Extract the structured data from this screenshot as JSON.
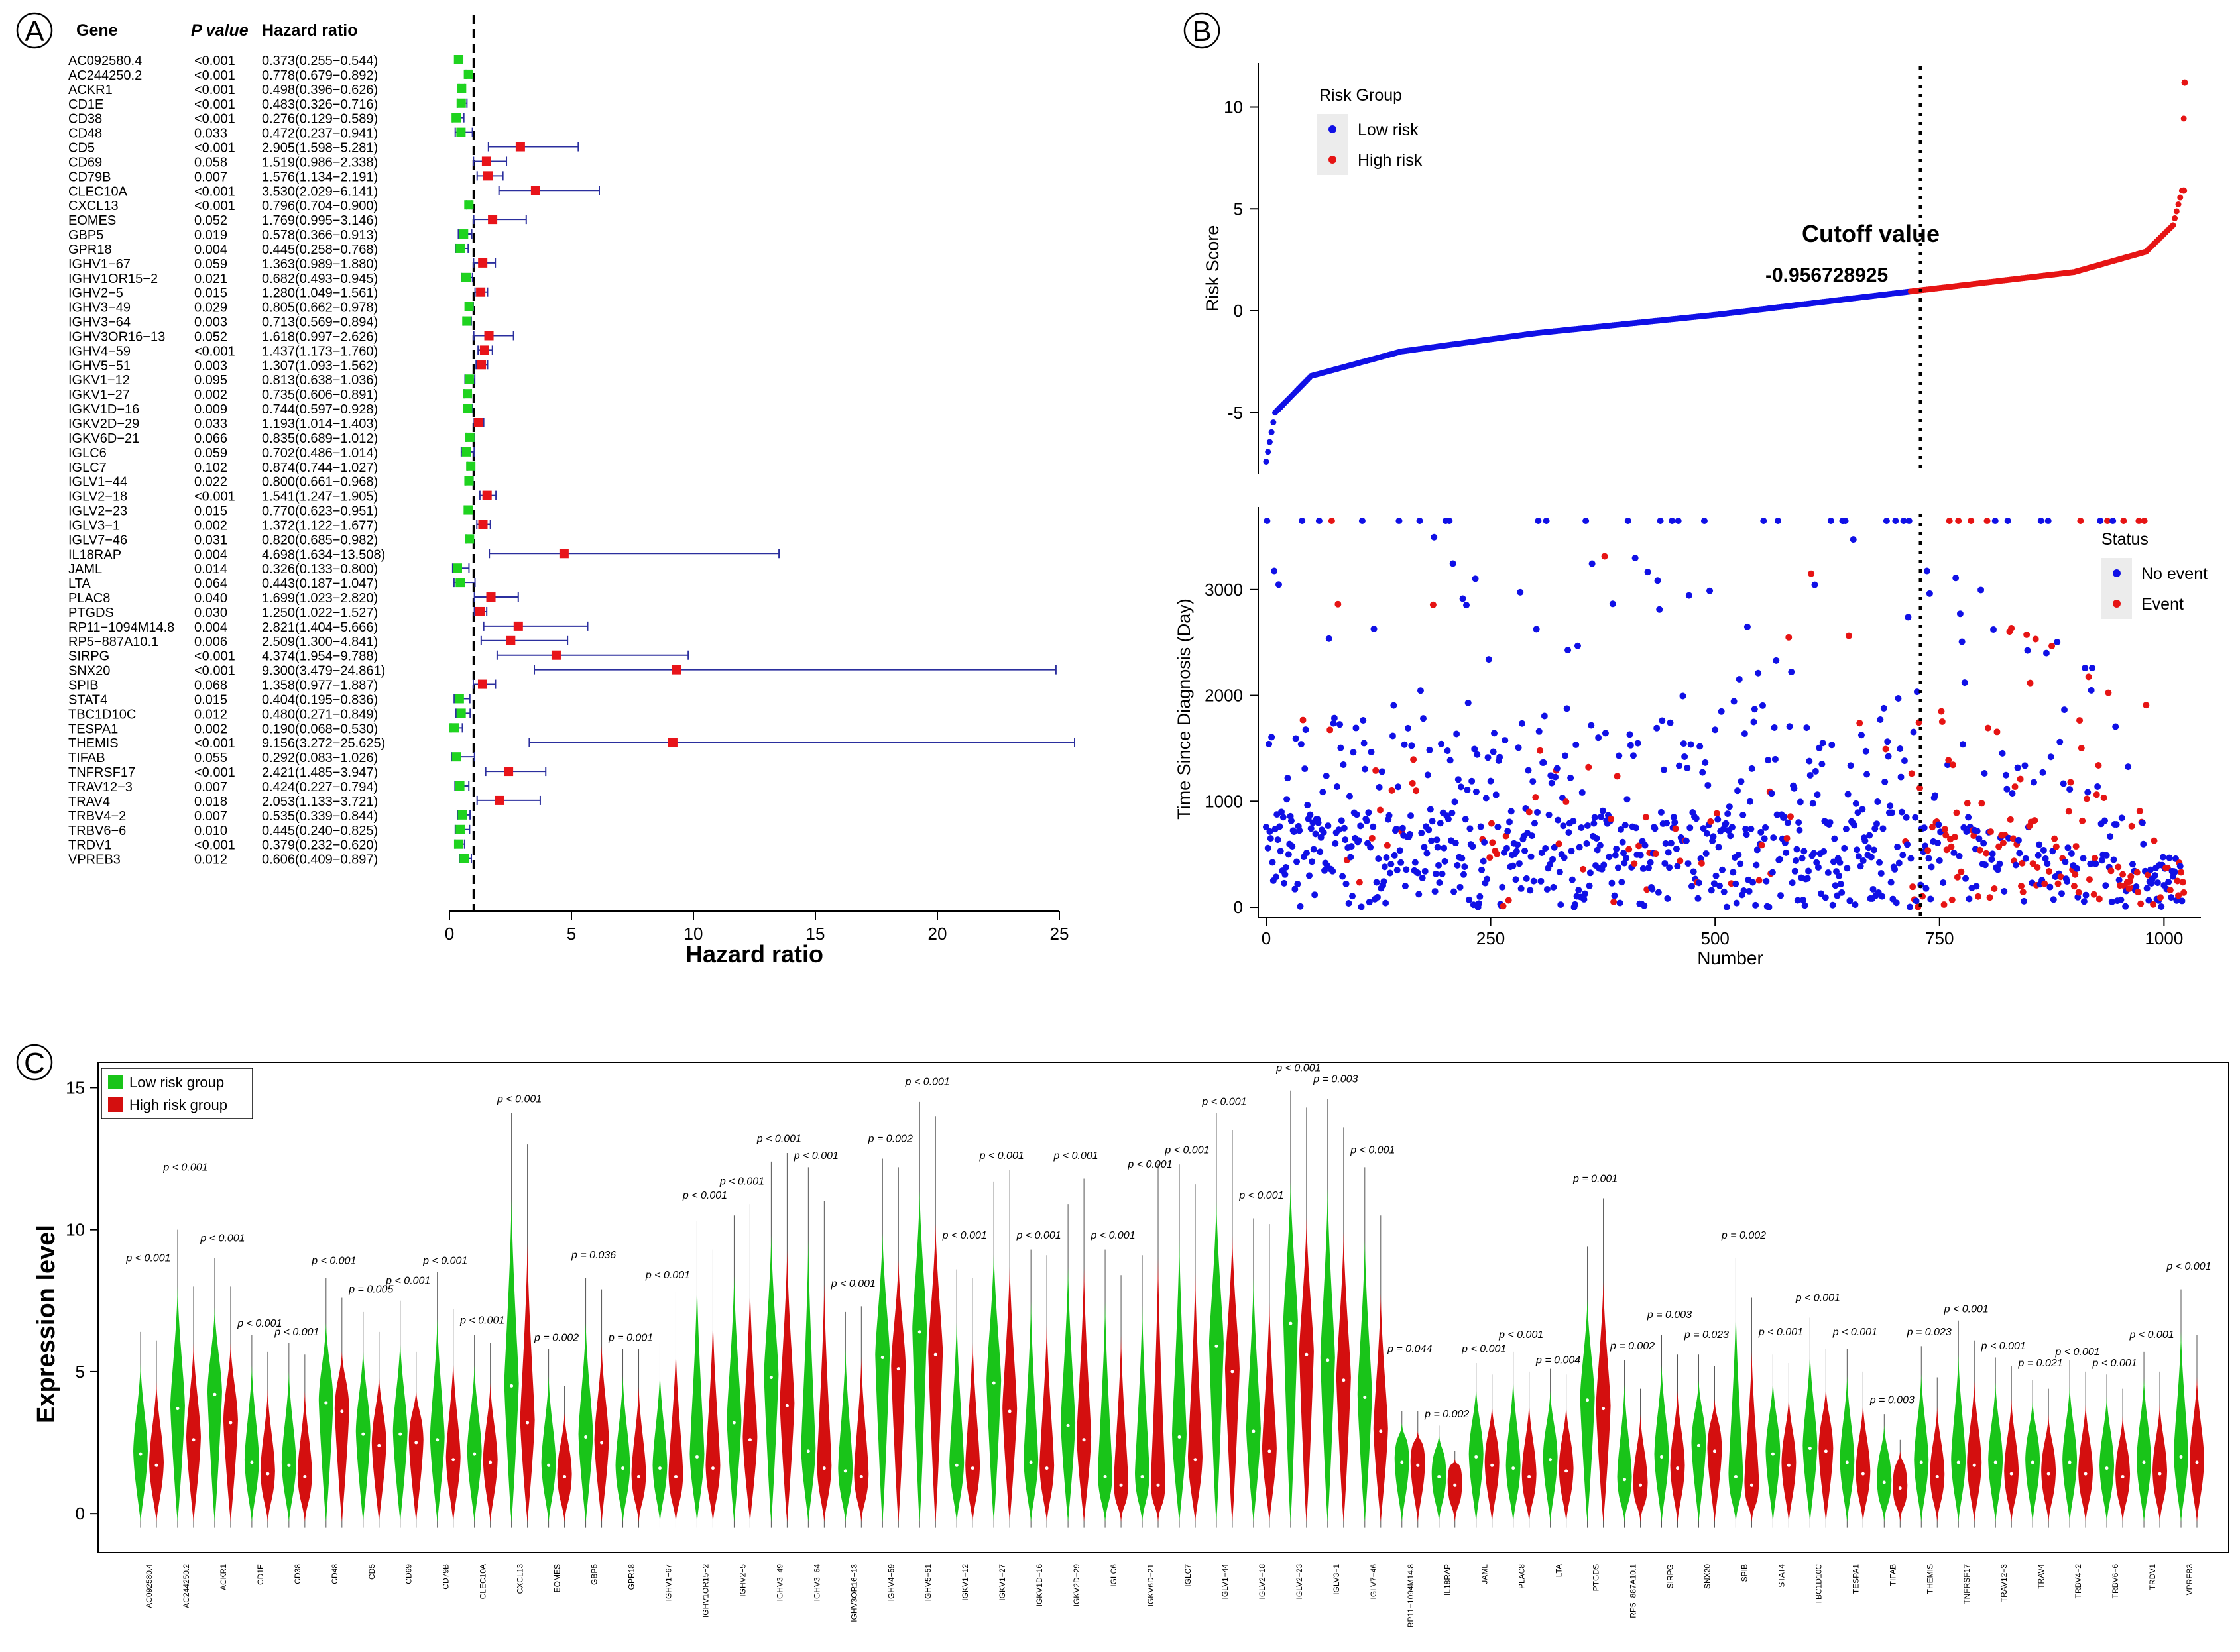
{
  "panels": {
    "A": "A",
    "B": "B",
    "C": "C"
  },
  "chart_data": [
    {
      "panel": "A",
      "type": "forest",
      "title": "",
      "xlabel": "Hazard ratio",
      "xlim": [
        0,
        25
      ],
      "xticks": [
        0,
        5,
        10,
        15,
        20,
        25
      ],
      "reference_line": 1,
      "headers": {
        "gene": "Gene",
        "p": "P value",
        "hr": "Hazard ratio"
      },
      "colors": {
        "protective": "#1fd31f",
        "risk": "#e8141a",
        "ci": "#2b2f9e"
      },
      "rows": [
        {
          "gene": "AC092580.4",
          "p": "<0.001",
          "hr_text": "0.373(0.255−0.544)",
          "hr": 0.373,
          "lo": 0.255,
          "hi": 0.544
        },
        {
          "gene": "AC244250.2",
          "p": "<0.001",
          "hr_text": "0.778(0.679−0.892)",
          "hr": 0.778,
          "lo": 0.679,
          "hi": 0.892
        },
        {
          "gene": "ACKR1",
          "p": "<0.001",
          "hr_text": "0.498(0.396−0.626)",
          "hr": 0.498,
          "lo": 0.396,
          "hi": 0.626
        },
        {
          "gene": "CD1E",
          "p": "<0.001",
          "hr_text": "0.483(0.326−0.716)",
          "hr": 0.483,
          "lo": 0.326,
          "hi": 0.716
        },
        {
          "gene": "CD38",
          "p": "<0.001",
          "hr_text": "0.276(0.129−0.589)",
          "hr": 0.276,
          "lo": 0.129,
          "hi": 0.589
        },
        {
          "gene": "CD48",
          "p": "0.033",
          "hr_text": "0.472(0.237−0.941)",
          "hr": 0.472,
          "lo": 0.237,
          "hi": 0.941
        },
        {
          "gene": "CD5",
          "p": "<0.001",
          "hr_text": "2.905(1.598−5.281)",
          "hr": 2.905,
          "lo": 1.598,
          "hi": 5.281
        },
        {
          "gene": "CD69",
          "p": "0.058",
          "hr_text": "1.519(0.986−2.338)",
          "hr": 1.519,
          "lo": 0.986,
          "hi": 2.338
        },
        {
          "gene": "CD79B",
          "p": "0.007",
          "hr_text": "1.576(1.134−2.191)",
          "hr": 1.576,
          "lo": 1.134,
          "hi": 2.191
        },
        {
          "gene": "CLEC10A",
          "p": "<0.001",
          "hr_text": "3.530(2.029−6.141)",
          "hr": 3.53,
          "lo": 2.029,
          "hi": 6.141
        },
        {
          "gene": "CXCL13",
          "p": "<0.001",
          "hr_text": "0.796(0.704−0.900)",
          "hr": 0.796,
          "lo": 0.704,
          "hi": 0.9
        },
        {
          "gene": "EOMES",
          "p": "0.052",
          "hr_text": "1.769(0.995−3.146)",
          "hr": 1.769,
          "lo": 0.995,
          "hi": 3.146
        },
        {
          "gene": "GBP5",
          "p": "0.019",
          "hr_text": "0.578(0.366−0.913)",
          "hr": 0.578,
          "lo": 0.366,
          "hi": 0.913
        },
        {
          "gene": "GPR18",
          "p": "0.004",
          "hr_text": "0.445(0.258−0.768)",
          "hr": 0.445,
          "lo": 0.258,
          "hi": 0.768
        },
        {
          "gene": "IGHV1−67",
          "p": "0.059",
          "hr_text": "1.363(0.989−1.880)",
          "hr": 1.363,
          "lo": 0.989,
          "hi": 1.88
        },
        {
          "gene": "IGHV1OR15−2",
          "p": "0.021",
          "hr_text": "0.682(0.493−0.945)",
          "hr": 0.682,
          "lo": 0.493,
          "hi": 0.945
        },
        {
          "gene": "IGHV2−5",
          "p": "0.015",
          "hr_text": "1.280(1.049−1.561)",
          "hr": 1.28,
          "lo": 1.049,
          "hi": 1.561
        },
        {
          "gene": "IGHV3−49",
          "p": "0.029",
          "hr_text": "0.805(0.662−0.978)",
          "hr": 0.805,
          "lo": 0.662,
          "hi": 0.978
        },
        {
          "gene": "IGHV3−64",
          "p": "0.003",
          "hr_text": "0.713(0.569−0.894)",
          "hr": 0.713,
          "lo": 0.569,
          "hi": 0.894
        },
        {
          "gene": "IGHV3OR16−13",
          "p": "0.052",
          "hr_text": "1.618(0.997−2.626)",
          "hr": 1.618,
          "lo": 0.997,
          "hi": 2.626
        },
        {
          "gene": "IGHV4−59",
          "p": "<0.001",
          "hr_text": "1.437(1.173−1.760)",
          "hr": 1.437,
          "lo": 1.173,
          "hi": 1.76
        },
        {
          "gene": "IGHV5−51",
          "p": "0.003",
          "hr_text": "1.307(1.093−1.562)",
          "hr": 1.307,
          "lo": 1.093,
          "hi": 1.562
        },
        {
          "gene": "IGKV1−12",
          "p": "0.095",
          "hr_text": "0.813(0.638−1.036)",
          "hr": 0.813,
          "lo": 0.638,
          "hi": 1.036
        },
        {
          "gene": "IGKV1−27",
          "p": "0.002",
          "hr_text": "0.735(0.606−0.891)",
          "hr": 0.735,
          "lo": 0.606,
          "hi": 0.891
        },
        {
          "gene": "IGKV1D−16",
          "p": "0.009",
          "hr_text": "0.744(0.597−0.928)",
          "hr": 0.744,
          "lo": 0.597,
          "hi": 0.928
        },
        {
          "gene": "IGKV2D−29",
          "p": "0.033",
          "hr_text": "1.193(1.014−1.403)",
          "hr": 1.193,
          "lo": 1.014,
          "hi": 1.403
        },
        {
          "gene": "IGKV6D−21",
          "p": "0.066",
          "hr_text": "0.835(0.689−1.012)",
          "hr": 0.835,
          "lo": 0.689,
          "hi": 1.012
        },
        {
          "gene": "IGLC6",
          "p": "0.059",
          "hr_text": "0.702(0.486−1.014)",
          "hr": 0.702,
          "lo": 0.486,
          "hi": 1.014
        },
        {
          "gene": "IGLC7",
          "p": "0.102",
          "hr_text": "0.874(0.744−1.027)",
          "hr": 0.874,
          "lo": 0.744,
          "hi": 1.027
        },
        {
          "gene": "IGLV1−44",
          "p": "0.022",
          "hr_text": "0.800(0.661−0.968)",
          "hr": 0.8,
          "lo": 0.661,
          "hi": 0.968
        },
        {
          "gene": "IGLV2−18",
          "p": "<0.001",
          "hr_text": "1.541(1.247−1.905)",
          "hr": 1.541,
          "lo": 1.247,
          "hi": 1.905
        },
        {
          "gene": "IGLV2−23",
          "p": "0.015",
          "hr_text": "0.770(0.623−0.951)",
          "hr": 0.77,
          "lo": 0.623,
          "hi": 0.951
        },
        {
          "gene": "IGLV3−1",
          "p": "0.002",
          "hr_text": "1.372(1.122−1.677)",
          "hr": 1.372,
          "lo": 1.122,
          "hi": 1.677
        },
        {
          "gene": "IGLV7−46",
          "p": "0.031",
          "hr_text": "0.820(0.685−0.982)",
          "hr": 0.82,
          "lo": 0.685,
          "hi": 0.982
        },
        {
          "gene": "IL18RAP",
          "p": "0.004",
          "hr_text": "4.698(1.634−13.508)",
          "hr": 4.698,
          "lo": 1.634,
          "hi": 13.508
        },
        {
          "gene": "JAML",
          "p": "0.014",
          "hr_text": "0.326(0.133−0.800)",
          "hr": 0.326,
          "lo": 0.133,
          "hi": 0.8
        },
        {
          "gene": "LTA",
          "p": "0.064",
          "hr_text": "0.443(0.187−1.047)",
          "hr": 0.443,
          "lo": 0.187,
          "hi": 1.047
        },
        {
          "gene": "PLAC8",
          "p": "0.040",
          "hr_text": "1.699(1.023−2.820)",
          "hr": 1.699,
          "lo": 1.023,
          "hi": 2.82
        },
        {
          "gene": "PTGDS",
          "p": "0.030",
          "hr_text": "1.250(1.022−1.527)",
          "hr": 1.25,
          "lo": 1.022,
          "hi": 1.527
        },
        {
          "gene": "RP11−1094M14.8",
          "p": "0.004",
          "hr_text": "2.821(1.404−5.666)",
          "hr": 2.821,
          "lo": 1.404,
          "hi": 5.666
        },
        {
          "gene": "RP5−887A10.1",
          "p": "0.006",
          "hr_text": "2.509(1.300−4.841)",
          "hr": 2.509,
          "lo": 1.3,
          "hi": 4.841
        },
        {
          "gene": "SIRPG",
          "p": "<0.001",
          "hr_text": "4.374(1.954−9.788)",
          "hr": 4.374,
          "lo": 1.954,
          "hi": 9.788
        },
        {
          "gene": "SNX20",
          "p": "<0.001",
          "hr_text": "9.300(3.479−24.861)",
          "hr": 9.3,
          "lo": 3.479,
          "hi": 24.861
        },
        {
          "gene": "SPIB",
          "p": "0.068",
          "hr_text": "1.358(0.977−1.887)",
          "hr": 1.358,
          "lo": 0.977,
          "hi": 1.887
        },
        {
          "gene": "STAT4",
          "p": "0.015",
          "hr_text": "0.404(0.195−0.836)",
          "hr": 0.404,
          "lo": 0.195,
          "hi": 0.836
        },
        {
          "gene": "TBC1D10C",
          "p": "0.012",
          "hr_text": "0.480(0.271−0.849)",
          "hr": 0.48,
          "lo": 0.271,
          "hi": 0.849
        },
        {
          "gene": "TESPA1",
          "p": "0.002",
          "hr_text": "0.190(0.068−0.530)",
          "hr": 0.19,
          "lo": 0.068,
          "hi": 0.53
        },
        {
          "gene": "THEMIS",
          "p": "<0.001",
          "hr_text": "9.156(3.272−25.625)",
          "hr": 9.156,
          "lo": 3.272,
          "hi": 25.625
        },
        {
          "gene": "TIFAB",
          "p": "0.055",
          "hr_text": "0.292(0.083−1.026)",
          "hr": 0.292,
          "lo": 0.083,
          "hi": 1.026
        },
        {
          "gene": "TNFRSF17",
          "p": "<0.001",
          "hr_text": "2.421(1.485−3.947)",
          "hr": 2.421,
          "lo": 1.485,
          "hi": 3.947
        },
        {
          "gene": "TRAV12−3",
          "p": "0.007",
          "hr_text": "0.424(0.227−0.794)",
          "hr": 0.424,
          "lo": 0.227,
          "hi": 0.794
        },
        {
          "gene": "TRAV4",
          "p": "0.018",
          "hr_text": "2.053(1.133−3.721)",
          "hr": 2.053,
          "lo": 1.133,
          "hi": 3.721
        },
        {
          "gene": "TRBV4−2",
          "p": "0.007",
          "hr_text": "0.535(0.339−0.844)",
          "hr": 0.535,
          "lo": 0.339,
          "hi": 0.844
        },
        {
          "gene": "TRBV6−6",
          "p": "0.010",
          "hr_text": "0.445(0.240−0.825)",
          "hr": 0.445,
          "lo": 0.24,
          "hi": 0.825
        },
        {
          "gene": "TRDV1",
          "p": "<0.001",
          "hr_text": "0.379(0.232−0.620)",
          "hr": 0.379,
          "lo": 0.232,
          "hi": 0.62
        },
        {
          "gene": "VPREB3",
          "p": "0.012",
          "hr_text": "0.606(0.409−0.897)",
          "hr": 0.606,
          "lo": 0.409,
          "hi": 0.897
        }
      ]
    },
    {
      "panel": "B-top",
      "type": "scatter",
      "title": "",
      "xlabel": "",
      "ylabel": "Risk Score",
      "xlim": [
        0,
        1030
      ],
      "ylim": [
        -8,
        12
      ],
      "yticks": [
        -5,
        0,
        5,
        10
      ],
      "cutoff_index": 718,
      "cutoff_title": "Cutoff value",
      "cutoff_value": "-0.956728925",
      "legend_title": "Risk Group",
      "legend": [
        "Low risk",
        "High risk"
      ],
      "colors": {
        "low": "#1010e6",
        "high": "#e61414"
      },
      "n_samples": 1023,
      "curve_description_points": [
        [
          0,
          -7.4
        ],
        [
          10,
          -5
        ],
        [
          50,
          -3.2
        ],
        [
          150,
          -2
        ],
        [
          300,
          -1.1
        ],
        [
          500,
          -0.2
        ],
        [
          718,
          0.95
        ],
        [
          900,
          1.9
        ],
        [
          980,
          2.9
        ],
        [
          1010,
          4.2
        ],
        [
          1020,
          5.9
        ],
        [
          1023,
          11.2
        ]
      ]
    },
    {
      "panel": "B-bottom",
      "type": "scatter",
      "title": "",
      "xlabel": "Number",
      "ylabel": "Time Since Diagnosis (Day)",
      "xlim": [
        0,
        1030
      ],
      "ylim": [
        -100,
        3750
      ],
      "xticks": [
        0,
        250,
        500,
        750,
        1000
      ],
      "yticks": [
        0,
        1000,
        2000,
        3000
      ],
      "cutoff_index": 718,
      "legend_title": "Status",
      "legend": [
        "No event",
        "Event"
      ],
      "colors": {
        "no_event": "#1010e6",
        "event": "#e61414"
      }
    },
    {
      "panel": "C",
      "type": "violin",
      "title": "",
      "xlabel": "",
      "ylabel": "Expression level",
      "ylim": [
        -1,
        15.5
      ],
      "yticks": [
        0,
        5,
        10,
        15
      ],
      "legend": [
        "Low risk group",
        "High risk group"
      ],
      "colors": {
        "low": "#19c419",
        "high": "#d40f0f"
      },
      "genes": [
        "AC092580.4",
        "AC244250.2",
        "ACKR1",
        "CD1E",
        "CD38",
        "CD48",
        "CD5",
        "CD69",
        "CD79B",
        "CLEC10A",
        "CXCL13",
        "EOMES",
        "GBP5",
        "GPR18",
        "IGHV1−67",
        "IGHV1OR15−2",
        "IGHV2−5",
        "IGHV3−49",
        "IGHV3−64",
        "IGHV3OR16−13",
        "IGHV4−59",
        "IGHV5−51",
        "IGKV1−12",
        "IGKV1−27",
        "IGKV1D−16",
        "IGKV2D−29",
        "IGLC6",
        "IGKV6D−21",
        "IGLC7",
        "IGLV1−44",
        "IGLV2−18",
        "IGLV2−23",
        "IGLV3−1",
        "IGLV7−46",
        "RP11−1094M14.8",
        "IL18RAP",
        "JAML",
        "PLAC8",
        "LTA",
        "PTGDS",
        "RP5−887A10.1",
        "SIRPG",
        "SNX20",
        "SPIB",
        "STAT4",
        "TBC1D10C",
        "TESPA1",
        "TIFAB",
        "THEMIS",
        "TNFRSF17",
        "TRAV12−3",
        "TRAV4",
        "TRBV4−2",
        "TRBV6−6",
        "TRDV1",
        "VPREB3"
      ],
      "p_labels": [
        "p < 0.001",
        "p < 0.001",
        "p < 0.001",
        "p < 0.001",
        "p < 0.001",
        "p < 0.001",
        "p = 0.005",
        "p < 0.001",
        "p < 0.001",
        "p < 0.001",
        "p < 0.001",
        "p = 0.002",
        "p = 0.036",
        "p = 0.001",
        "p < 0.001",
        "p < 0.001",
        "p < 0.001",
        "p < 0.001",
        "p < 0.001",
        "p < 0.001",
        "p = 0.002",
        "p < 0.001",
        "p < 0.001",
        "p < 0.001",
        "p < 0.001",
        "p < 0.001",
        "p < 0.001",
        "p < 0.001",
        "p < 0.001",
        "p < 0.001",
        "p < 0.001",
        "p < 0.001",
        "p = 0.003",
        "p < 0.001",
        "p = 0.044",
        "p = 0.002",
        "p < 0.001",
        "p < 0.001",
        "p = 0.004",
        "p = 0.001",
        "p = 0.002",
        "p = 0.003",
        "p = 0.023",
        "p = 0.002",
        "p < 0.001",
        "p < 0.001",
        "p < 0.001",
        "p = 0.003",
        "p = 0.023",
        "p < 0.001",
        "p < 0.001",
        "p = 0.021",
        "p < 0.001",
        "p < 0.001",
        "p < 0.001",
        "p < 0.001"
      ],
      "p_label_height": [
        8.7,
        11.9,
        9.4,
        6.4,
        6.1,
        8.6,
        7.6,
        7.9,
        8.6,
        6.5,
        14.3,
        5.9,
        8.8,
        5.9,
        8.1,
        10.9,
        11.4,
        12.9,
        12.3,
        7.8,
        12.9,
        14.9,
        9.5,
        12.3,
        9.5,
        12.3,
        9.5,
        12.0,
        12.5,
        14.2,
        10.9,
        15.4,
        15.0,
        12.5,
        5.5,
        3.2,
        5.5,
        6.0,
        5.1,
        11.5,
        5.6,
        6.7,
        6.0,
        9.5,
        6.1,
        7.3,
        6.1,
        3.7,
        6.1,
        6.9,
        5.6,
        5.0,
        5.4,
        5.0,
        6.0,
        8.4
      ],
      "low_max": [
        6.4,
        10.0,
        9.0,
        6.3,
        6.0,
        8.3,
        7.1,
        7.5,
        8.5,
        6.3,
        14.1,
        5.8,
        8.3,
        5.8,
        6.0,
        10.3,
        10.5,
        12.4,
        12.2,
        7.1,
        12.5,
        14.5,
        8.6,
        11.7,
        9.3,
        10.9,
        9.3,
        9.1,
        12.3,
        14.1,
        10.4,
        14.9,
        14.6,
        12.2,
        3.6,
        3.1,
        5.3,
        5.7,
        5.1,
        9.4,
        5.4,
        6.3,
        5.6,
        9.0,
        5.6,
        6.9,
        5.8,
        3.5,
        5.9,
        6.8,
        5.5,
        4.7,
        5.4,
        4.9,
        5.7,
        7.9
      ],
      "high_max": [
        6.1,
        8.0,
        8.0,
        5.7,
        5.6,
        7.6,
        6.4,
        5.7,
        7.2,
        6.0,
        13.0,
        4.5,
        7.9,
        5.8,
        7.8,
        9.3,
        10.9,
        12.7,
        11.0,
        7.3,
        12.2,
        14.0,
        8.3,
        12.1,
        9.1,
        11.8,
        8.4,
        12.3,
        11.6,
        13.5,
        10.2,
        14.3,
        13.6,
        10.5,
        3.6,
        2.2,
        4.9,
        5.0,
        4.9,
        11.1,
        4.4,
        5.6,
        5.2,
        7.6,
        5.3,
        5.8,
        5.0,
        2.6,
        4.8,
        6.1,
        5.2,
        4.4,
        5.0,
        4.4,
        5.0,
        6.3
      ],
      "low_median": [
        2.1,
        3.7,
        4.2,
        1.8,
        1.7,
        3.9,
        2.8,
        2.8,
        2.6,
        2.1,
        4.5,
        1.7,
        2.7,
        1.6,
        1.6,
        2.0,
        3.2,
        4.8,
        2.2,
        1.5,
        5.5,
        6.4,
        1.7,
        4.6,
        1.8,
        3.1,
        1.3,
        1.3,
        2.7,
        5.9,
        2.9,
        6.7,
        5.4,
        4.1,
        1.8,
        1.3,
        2.0,
        1.6,
        1.9,
        4.0,
        1.2,
        2.0,
        2.4,
        1.3,
        2.1,
        2.3,
        1.8,
        1.1,
        1.8,
        1.8,
        1.8,
        1.8,
        1.8,
        1.6,
        1.8,
        2.0
      ],
      "high_median": [
        1.7,
        2.6,
        3.2,
        1.4,
        1.3,
        3.6,
        2.4,
        2.5,
        1.9,
        1.8,
        3.2,
        1.3,
        2.5,
        1.3,
        1.3,
        1.6,
        2.6,
        3.8,
        1.6,
        1.3,
        5.1,
        5.6,
        1.6,
        3.6,
        1.6,
        2.6,
        1.0,
        1.0,
        1.9,
        5.0,
        2.2,
        5.6,
        4.7,
        2.9,
        1.7,
        1.0,
        1.7,
        1.3,
        1.5,
        3.7,
        1.0,
        1.6,
        2.2,
        1.0,
        1.7,
        2.2,
        1.4,
        0.9,
        1.3,
        1.7,
        1.4,
        1.4,
        1.4,
        1.3,
        1.4,
        1.8
      ]
    }
  ]
}
